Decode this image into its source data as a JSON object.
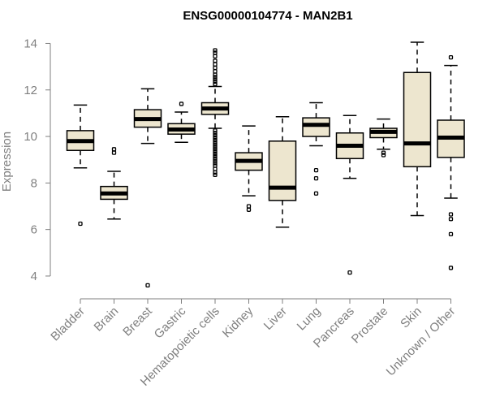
{
  "chart_data": {
    "type": "boxplot",
    "title": "ENSG00000104774 - MAN2B1",
    "xlabel": "",
    "ylabel": "Expression",
    "ylim": [
      3.3,
      14.4
    ],
    "yticks": [
      4,
      6,
      8,
      10,
      12,
      14
    ],
    "grid": false,
    "box_color": "#ede6cf",
    "line_color": "#000000",
    "axis_color": "#7f7f7f",
    "categories": [
      "Bladder",
      "Brain",
      "Breast",
      "Gastric",
      "Hematopoietic cells",
      "Kidney",
      "Liver",
      "Lung",
      "Pancreas",
      "Prostate",
      "Skin",
      "Unknown / Other"
    ],
    "boxes": [
      {
        "min": 8.65,
        "q1": 9.4,
        "median": 9.8,
        "q3": 10.25,
        "max": 11.35,
        "outliers": [
          6.25
        ]
      },
      {
        "min": 6.45,
        "q1": 7.3,
        "median": 7.55,
        "q3": 7.85,
        "max": 8.5,
        "outliers": [
          9.3,
          9.45
        ]
      },
      {
        "min": 9.7,
        "q1": 10.4,
        "median": 10.75,
        "q3": 11.15,
        "max": 12.05,
        "outliers": [
          3.6
        ]
      },
      {
        "min": 9.75,
        "q1": 10.1,
        "median": 10.3,
        "q3": 10.55,
        "max": 11.05,
        "outliers": [
          11.4
        ]
      },
      {
        "min": 10.35,
        "q1": 10.95,
        "median": 11.2,
        "q3": 11.45,
        "max": 12.15,
        "outliers": [
          12.25,
          12.35,
          12.45,
          12.55,
          12.65,
          12.8,
          12.95,
          13.1,
          13.25,
          13.45,
          13.6,
          13.7,
          10.25,
          10.15,
          10.05,
          9.95,
          9.85,
          9.75,
          9.65,
          9.55,
          9.45,
          9.35,
          9.25,
          9.15,
          9.05,
          8.95,
          8.85,
          8.75,
          8.6,
          8.45,
          8.35
        ]
      },
      {
        "min": 7.45,
        "q1": 8.55,
        "median": 8.95,
        "q3": 9.3,
        "max": 10.45,
        "outliers": [
          7.0,
          6.85
        ]
      },
      {
        "min": 6.1,
        "q1": 7.25,
        "median": 7.8,
        "q3": 9.8,
        "max": 10.85,
        "outliers": []
      },
      {
        "min": 9.6,
        "q1": 10.0,
        "median": 10.5,
        "q3": 10.8,
        "max": 11.45,
        "outliers": [
          8.55,
          8.2,
          7.55
        ]
      },
      {
        "min": 8.2,
        "q1": 9.05,
        "median": 9.6,
        "q3": 10.15,
        "max": 10.9,
        "outliers": [
          4.15
        ]
      },
      {
        "min": 9.45,
        "q1": 9.95,
        "median": 10.2,
        "q3": 10.35,
        "max": 10.75,
        "outliers": [
          9.3,
          9.2
        ]
      },
      {
        "min": 6.6,
        "q1": 8.7,
        "median": 9.7,
        "q3": 12.75,
        "max": 14.05,
        "outliers": []
      },
      {
        "min": 7.35,
        "q1": 9.1,
        "median": 9.95,
        "q3": 10.7,
        "max": 13.05,
        "outliers": [
          13.4,
          6.65,
          6.45,
          5.8,
          4.35
        ]
      }
    ]
  }
}
